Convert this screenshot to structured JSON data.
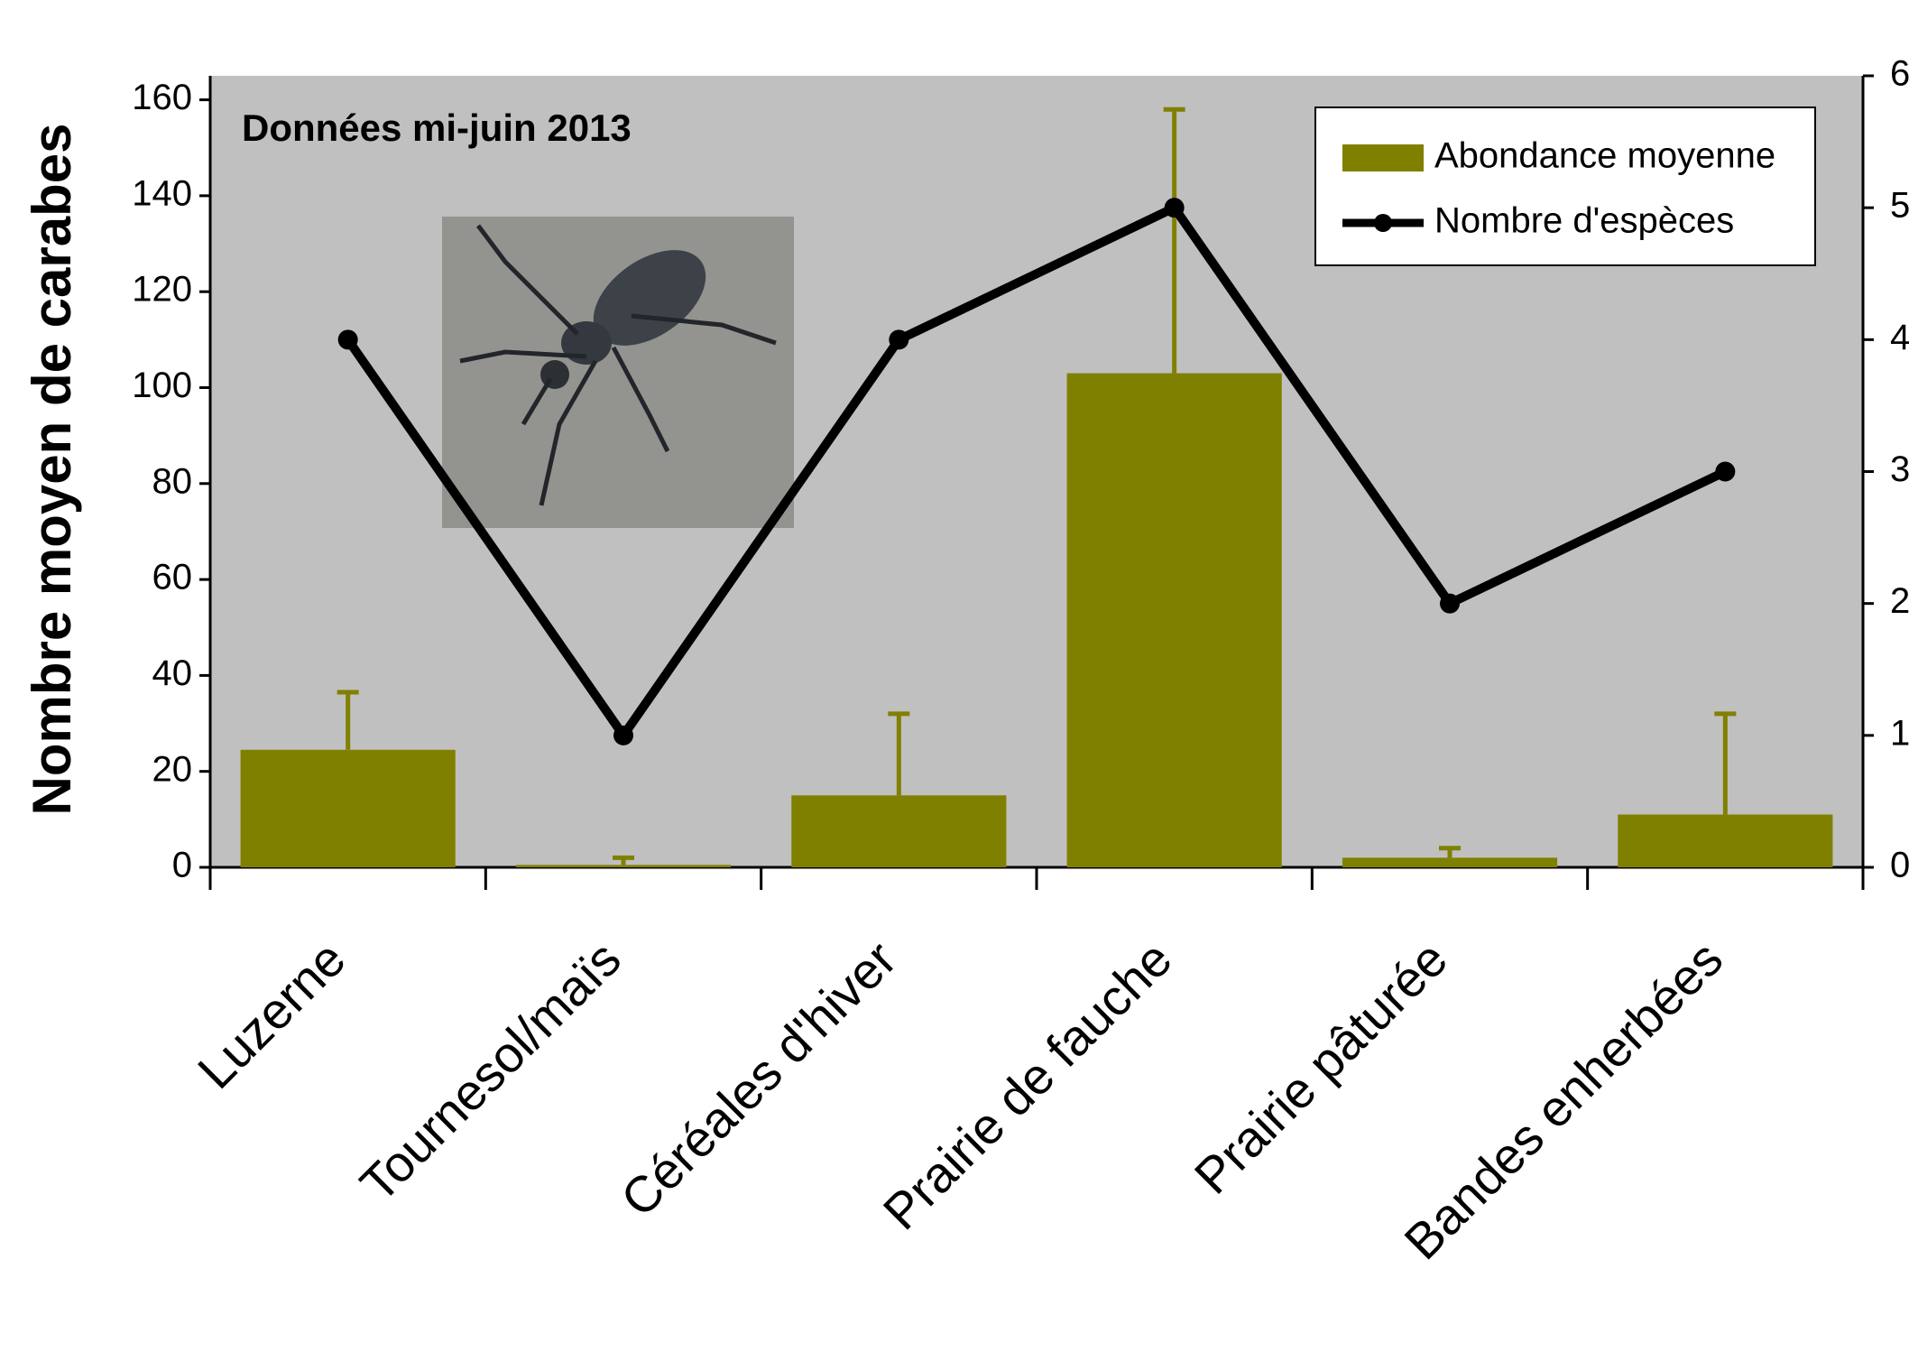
{
  "chart_data": {
    "type": "bar",
    "y_label": "Nombre moyen de carabes",
    "annotation": "Données mi-juin 2013",
    "categories": [
      "Luzerne",
      "Tournesol/maïs",
      "Céréales d'hiver",
      "Prairie de fauche",
      "Prairie pâturée",
      "Bandes enherbées"
    ],
    "series": [
      {
        "name": "Abondance moyenne",
        "color": "#808000",
        "values": [
          24.5,
          0.5,
          15,
          103,
          2,
          11
        ],
        "errors": [
          12,
          1.5,
          17,
          55,
          2,
          21
        ]
      },
      {
        "name": "Nombre d'espèces",
        "color": "#000000",
        "values": [
          4,
          1,
          4,
          5,
          2,
          3
        ],
        "axis": "y2"
      }
    ],
    "ylim": [
      0,
      165
    ],
    "yticks": [
      0,
      20,
      40,
      60,
      80,
      100,
      120,
      140,
      160
    ],
    "y2lim": [
      0,
      6
    ],
    "y2ticks": [
      0,
      1,
      2,
      3,
      4,
      5,
      6
    ],
    "plot_background": "#c0c0c0",
    "legend": "upper right"
  }
}
